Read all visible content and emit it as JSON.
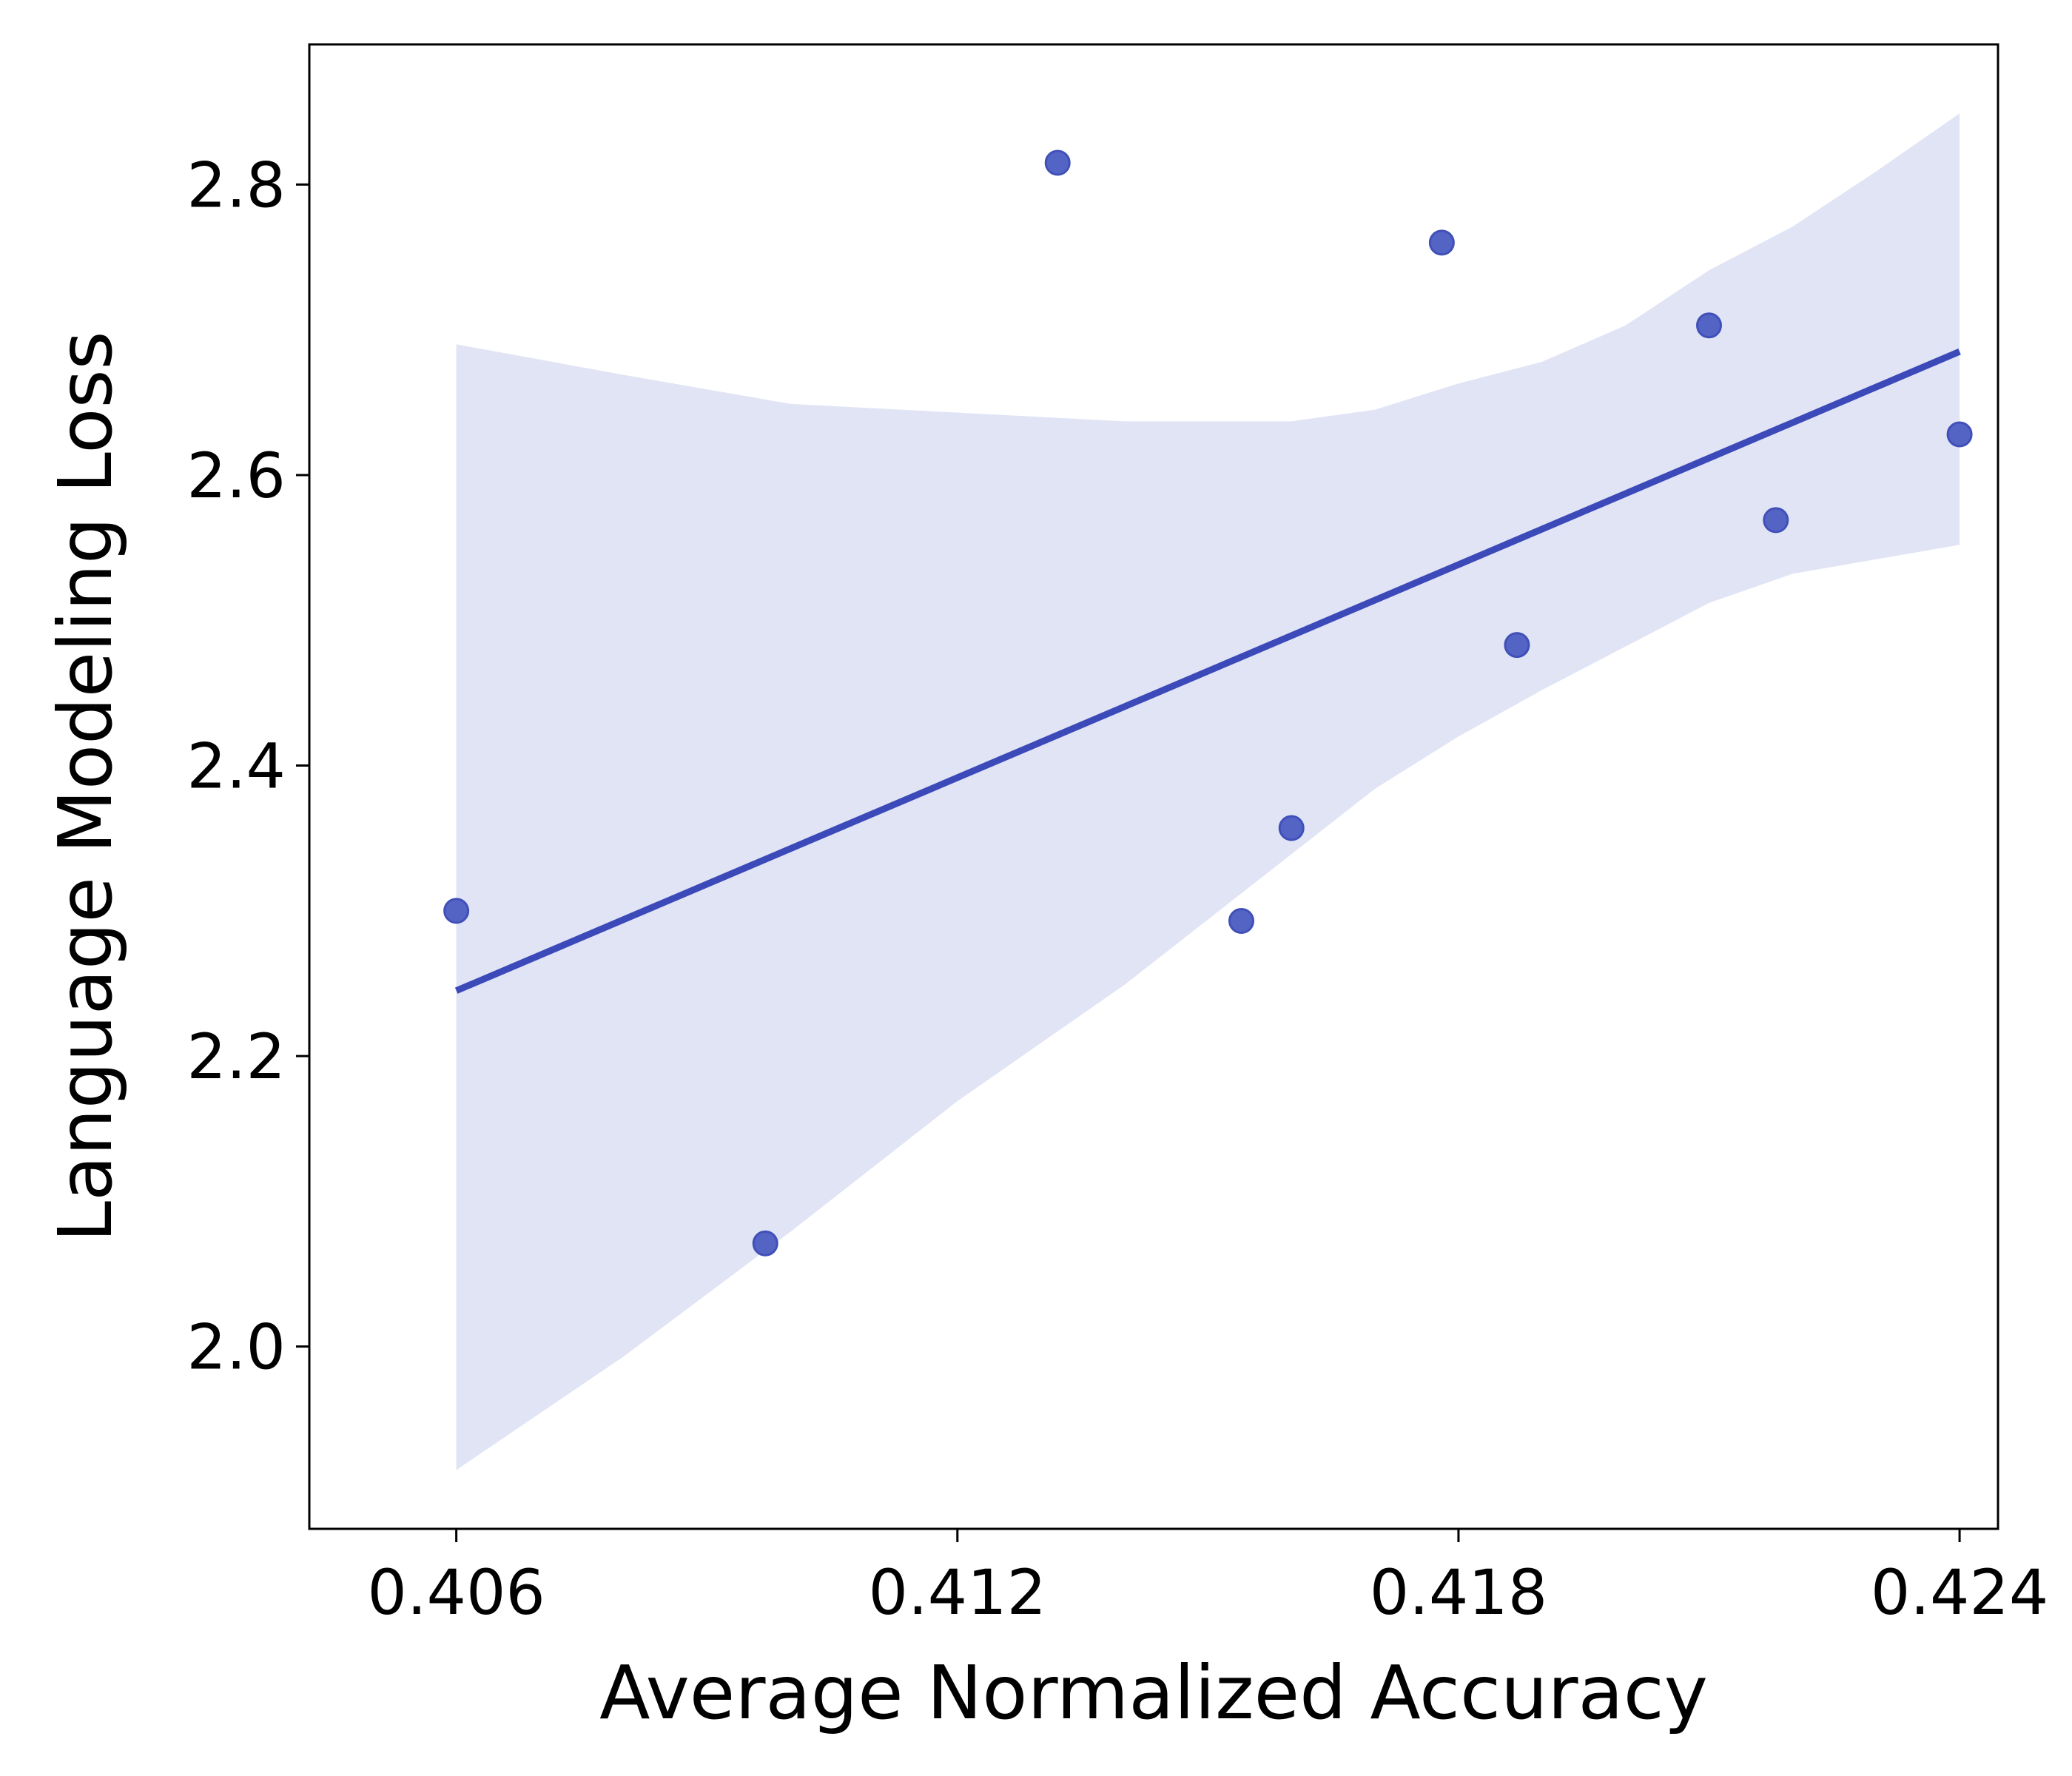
{
  "chart_data": {
    "type": "scatter",
    "title": "",
    "xlabel": "Average Normalized Accuracy",
    "ylabel": "Language Modeling Loss",
    "xlim": [
      0.40424,
      0.42446
    ],
    "ylim": [
      1.8745,
      2.8965
    ],
    "x_ticks": [
      0.406,
      0.412,
      0.418,
      0.424
    ],
    "x_tick_labels": [
      "0.406",
      "0.412",
      "0.418",
      "0.424"
    ],
    "y_ticks": [
      2.0,
      2.2,
      2.4,
      2.6,
      2.8
    ],
    "y_tick_labels": [
      "2.0",
      "2.2",
      "2.4",
      "2.6",
      "2.8"
    ],
    "grid": false,
    "points": [
      {
        "x": 0.406,
        "y": 2.3
      },
      {
        "x": 0.4097,
        "y": 2.071
      },
      {
        "x": 0.4132,
        "y": 2.815
      },
      {
        "x": 0.4154,
        "y": 2.293
      },
      {
        "x": 0.416,
        "y": 2.357
      },
      {
        "x": 0.4178,
        "y": 2.76
      },
      {
        "x": 0.4187,
        "y": 2.483
      },
      {
        "x": 0.421,
        "y": 2.703
      },
      {
        "x": 0.4218,
        "y": 2.569
      },
      {
        "x": 0.424,
        "y": 2.628
      }
    ],
    "regression_line": {
      "x": [
        0.406,
        0.424
      ],
      "y": [
        2.245,
        2.685
      ]
    },
    "confidence_band": {
      "x": [
        0.406,
        0.408,
        0.41,
        0.412,
        0.414,
        0.416,
        0.417,
        0.418,
        0.419,
        0.42,
        0.421,
        0.422,
        0.423,
        0.424
      ],
      "upper": [
        2.69,
        2.669,
        2.649,
        2.643,
        2.637,
        2.637,
        2.645,
        2.663,
        2.678,
        2.703,
        2.741,
        2.771,
        2.809,
        2.849
      ],
      "lower": [
        1.915,
        1.993,
        2.079,
        2.169,
        2.249,
        2.339,
        2.384,
        2.42,
        2.452,
        2.482,
        2.512,
        2.532,
        2.542,
        2.552
      ]
    },
    "colors": {
      "point_fill": "#5464c4",
      "point_edge": "#4050b8",
      "line": "#3b49b9",
      "band": "#e0e4f5",
      "axes": "#000000",
      "background": "#ffffff"
    }
  }
}
